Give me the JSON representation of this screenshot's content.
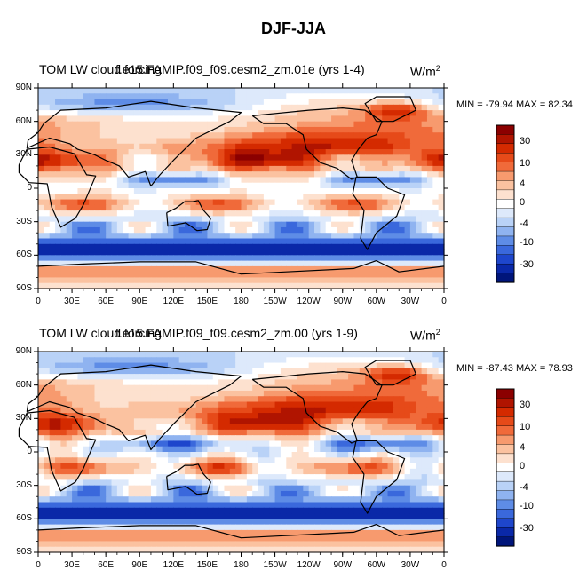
{
  "title": "DJF-JJA",
  "chart_data": [
    {
      "type": "heatmap",
      "left_title": "TOM LW cloud forcing",
      "center_title": "f.e15.FAMIP.f09_f09.cesm2_zm.01e (yrs 1-4)",
      "units": "W/m",
      "units_exp": "2",
      "min_label": "MIN = -79.94",
      "max_label": "MAX =  82.34",
      "min": -79.94,
      "max": 82.34,
      "lat_ticks": [
        "90N",
        "60N",
        "30N",
        "0",
        "30S",
        "60S",
        "90S"
      ],
      "lon_ticks": [
        "0",
        "30E",
        "60E",
        "90E",
        "120E",
        "150E",
        "180",
        "150W",
        "120W",
        "90W",
        "60W",
        "30W",
        "0"
      ],
      "colorbar_levels": [
        -40,
        -35,
        -30,
        -25,
        -20,
        -15,
        -10,
        -6,
        -4,
        -2,
        0,
        2,
        4,
        6,
        10,
        15,
        20,
        25,
        30,
        35,
        40
      ],
      "colorbar_labels": [
        "30",
        "10",
        "4",
        "0",
        "-4",
        "-10",
        "-30"
      ]
    },
    {
      "type": "heatmap",
      "left_title": "TOM LW cloud forcing",
      "center_title": "f.e15.FAMIP.f09_f09.cesm2_zm.00 (yrs 1-9)",
      "units": "W/m",
      "units_exp": "2",
      "min_label": "MIN = -87.43",
      "max_label": "MAX =  78.93",
      "min": -87.43,
      "max": 78.93,
      "lat_ticks": [
        "90N",
        "60N",
        "30N",
        "0",
        "30S",
        "60S",
        "90S"
      ],
      "lon_ticks": [
        "0",
        "30E",
        "60E",
        "90E",
        "120E",
        "150E",
        "180",
        "150W",
        "120W",
        "90W",
        "60W",
        "30W",
        "0"
      ],
      "colorbar_levels": [
        -40,
        -35,
        -30,
        -25,
        -20,
        -15,
        -10,
        -6,
        -4,
        -2,
        0,
        2,
        4,
        6,
        10,
        15,
        20,
        25,
        30,
        35,
        40
      ],
      "colorbar_labels": [
        "30",
        "10",
        "4",
        "0",
        "-4",
        "-10",
        "-30"
      ]
    }
  ],
  "colors": {
    "palette": [
      "#8b0000",
      "#b01400",
      "#d42a00",
      "#e64a19",
      "#f06a3a",
      "#f79a6e",
      "#fbc2a0",
      "#fde1cf",
      "#ffffff",
      "#dde9fb",
      "#b9d2f7",
      "#8fb3f0",
      "#5e8ce6",
      "#3a68dc",
      "#1e46cc",
      "#0a28a8",
      "#00157a"
    ],
    "frame": "#000000"
  }
}
